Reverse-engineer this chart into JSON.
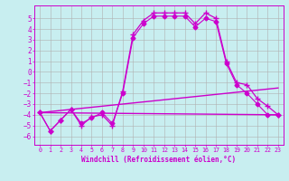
{
  "background_color": "#c8eef0",
  "grid_color": "#b0b0b0",
  "line_color": "#cc00cc",
  "xlabel": "Windchill (Refroidissement éolien,°C)",
  "xlim": [
    -0.5,
    23.5
  ],
  "ylim": [
    -6.8,
    6.2
  ],
  "yticks": [
    -6,
    -5,
    -4,
    -3,
    -2,
    -1,
    0,
    1,
    2,
    3,
    4,
    5
  ],
  "xticks": [
    0,
    1,
    2,
    3,
    4,
    5,
    6,
    7,
    8,
    9,
    10,
    11,
    12,
    13,
    14,
    15,
    16,
    17,
    18,
    19,
    20,
    21,
    22,
    23
  ],
  "series": [
    {
      "x": [
        0,
        1,
        2,
        3,
        4,
        5,
        6,
        7,
        8,
        9,
        10,
        11,
        12,
        13,
        14,
        15,
        16,
        17,
        18,
        19,
        20,
        21,
        22,
        23
      ],
      "y": [
        -3.8,
        -5.5,
        -4.5,
        -3.5,
        -5.0,
        -4.2,
        -4.0,
        -5.0,
        -1.8,
        3.5,
        4.8,
        5.5,
        5.5,
        5.5,
        5.5,
        4.5,
        5.5,
        5.0,
        1.0,
        -1.0,
        -1.2,
        -2.5,
        -3.2,
        -4.0
      ],
      "marker": "+",
      "markersize": 4,
      "linewidth": 0.9
    },
    {
      "x": [
        0,
        1,
        2,
        3,
        4,
        5,
        6,
        7,
        8,
        9,
        10,
        11,
        12,
        13,
        14,
        15,
        16,
        17,
        18,
        19,
        20,
        21,
        22,
        23
      ],
      "y": [
        -3.8,
        -5.5,
        -4.5,
        -3.5,
        -4.8,
        -4.3,
        -3.8,
        -4.8,
        -2.0,
        3.2,
        4.5,
        5.2,
        5.2,
        5.2,
        5.2,
        4.2,
        5.0,
        4.7,
        0.8,
        -1.2,
        -2.0,
        -3.0,
        -4.0,
        -4.0
      ],
      "marker": "D",
      "markersize": 2.5,
      "linewidth": 0.8
    },
    {
      "x": [
        0,
        23
      ],
      "y": [
        -3.8,
        -4.0
      ],
      "marker": null,
      "markersize": 0,
      "linewidth": 1.0
    },
    {
      "x": [
        0,
        23
      ],
      "y": [
        -3.8,
        -1.5
      ],
      "marker": null,
      "markersize": 0,
      "linewidth": 1.0
    }
  ]
}
